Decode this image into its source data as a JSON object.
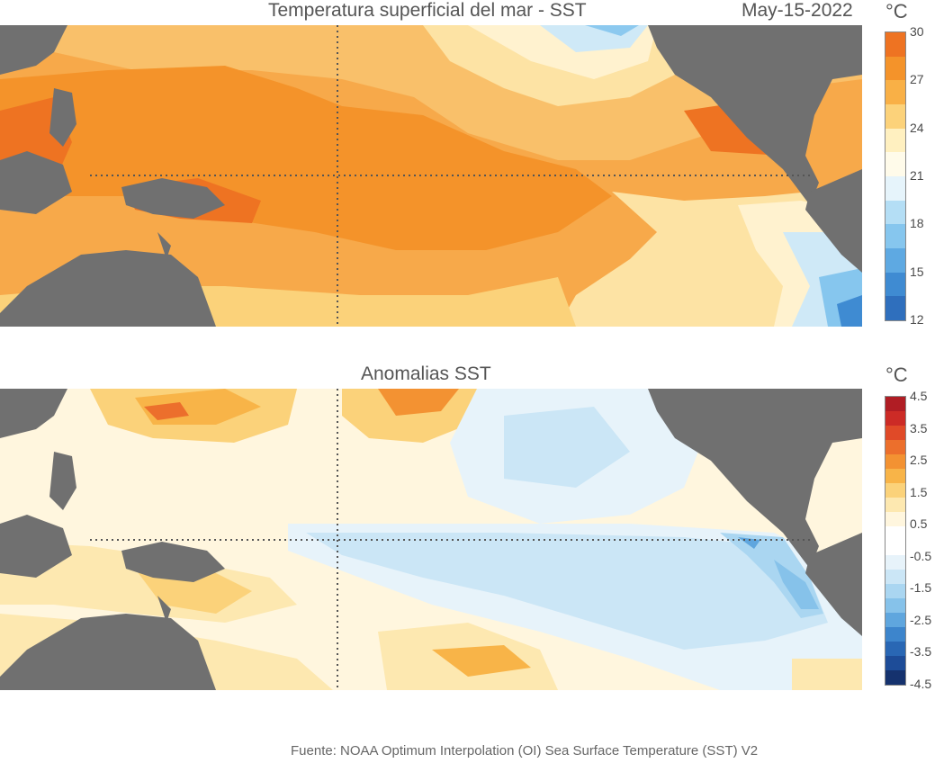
{
  "top_panel": {
    "title": "Temperatura superficial del mar - SST",
    "date": "May-15-2022",
    "unit": "°C",
    "colorbar": {
      "ticks": [
        "30",
        "27",
        "24",
        "21",
        "18",
        "15",
        "12"
      ],
      "colors": [
        "#ee7322",
        "#f4932a",
        "#f9b046",
        "#fcd27a",
        "#fff0c0",
        "#fffbea",
        "#e6f4fb",
        "#b4def5",
        "#86c6ee",
        "#5ea9e2",
        "#3f8bd2",
        "#2f6fbd"
      ]
    }
  },
  "bottom_panel": {
    "title": "Anomalias SST",
    "unit": "°C",
    "colorbar": {
      "ticks": [
        "4.5",
        "3.5",
        "2.5",
        "1.5",
        "0.5",
        "-0.5",
        "-1.5",
        "-2.5",
        "-3.5",
        "-4.5"
      ],
      "colors": [
        "#b01d24",
        "#cc2b26",
        "#e04a28",
        "#ec6f2c",
        "#f39232",
        "#f8b448",
        "#fbd27a",
        "#fde8b0",
        "#fff6de",
        "#ffffff",
        "#ffffff",
        "#e7f3fa",
        "#cbe6f6",
        "#aad6f1",
        "#86c2ea",
        "#5fa6de",
        "#3d85cc",
        "#2967b4",
        "#1d4c98",
        "#15326e"
      ]
    }
  },
  "source": "Fuente: NOAA Optimum Interpolation (OI) Sea Surface Temperature (SST) V2"
}
